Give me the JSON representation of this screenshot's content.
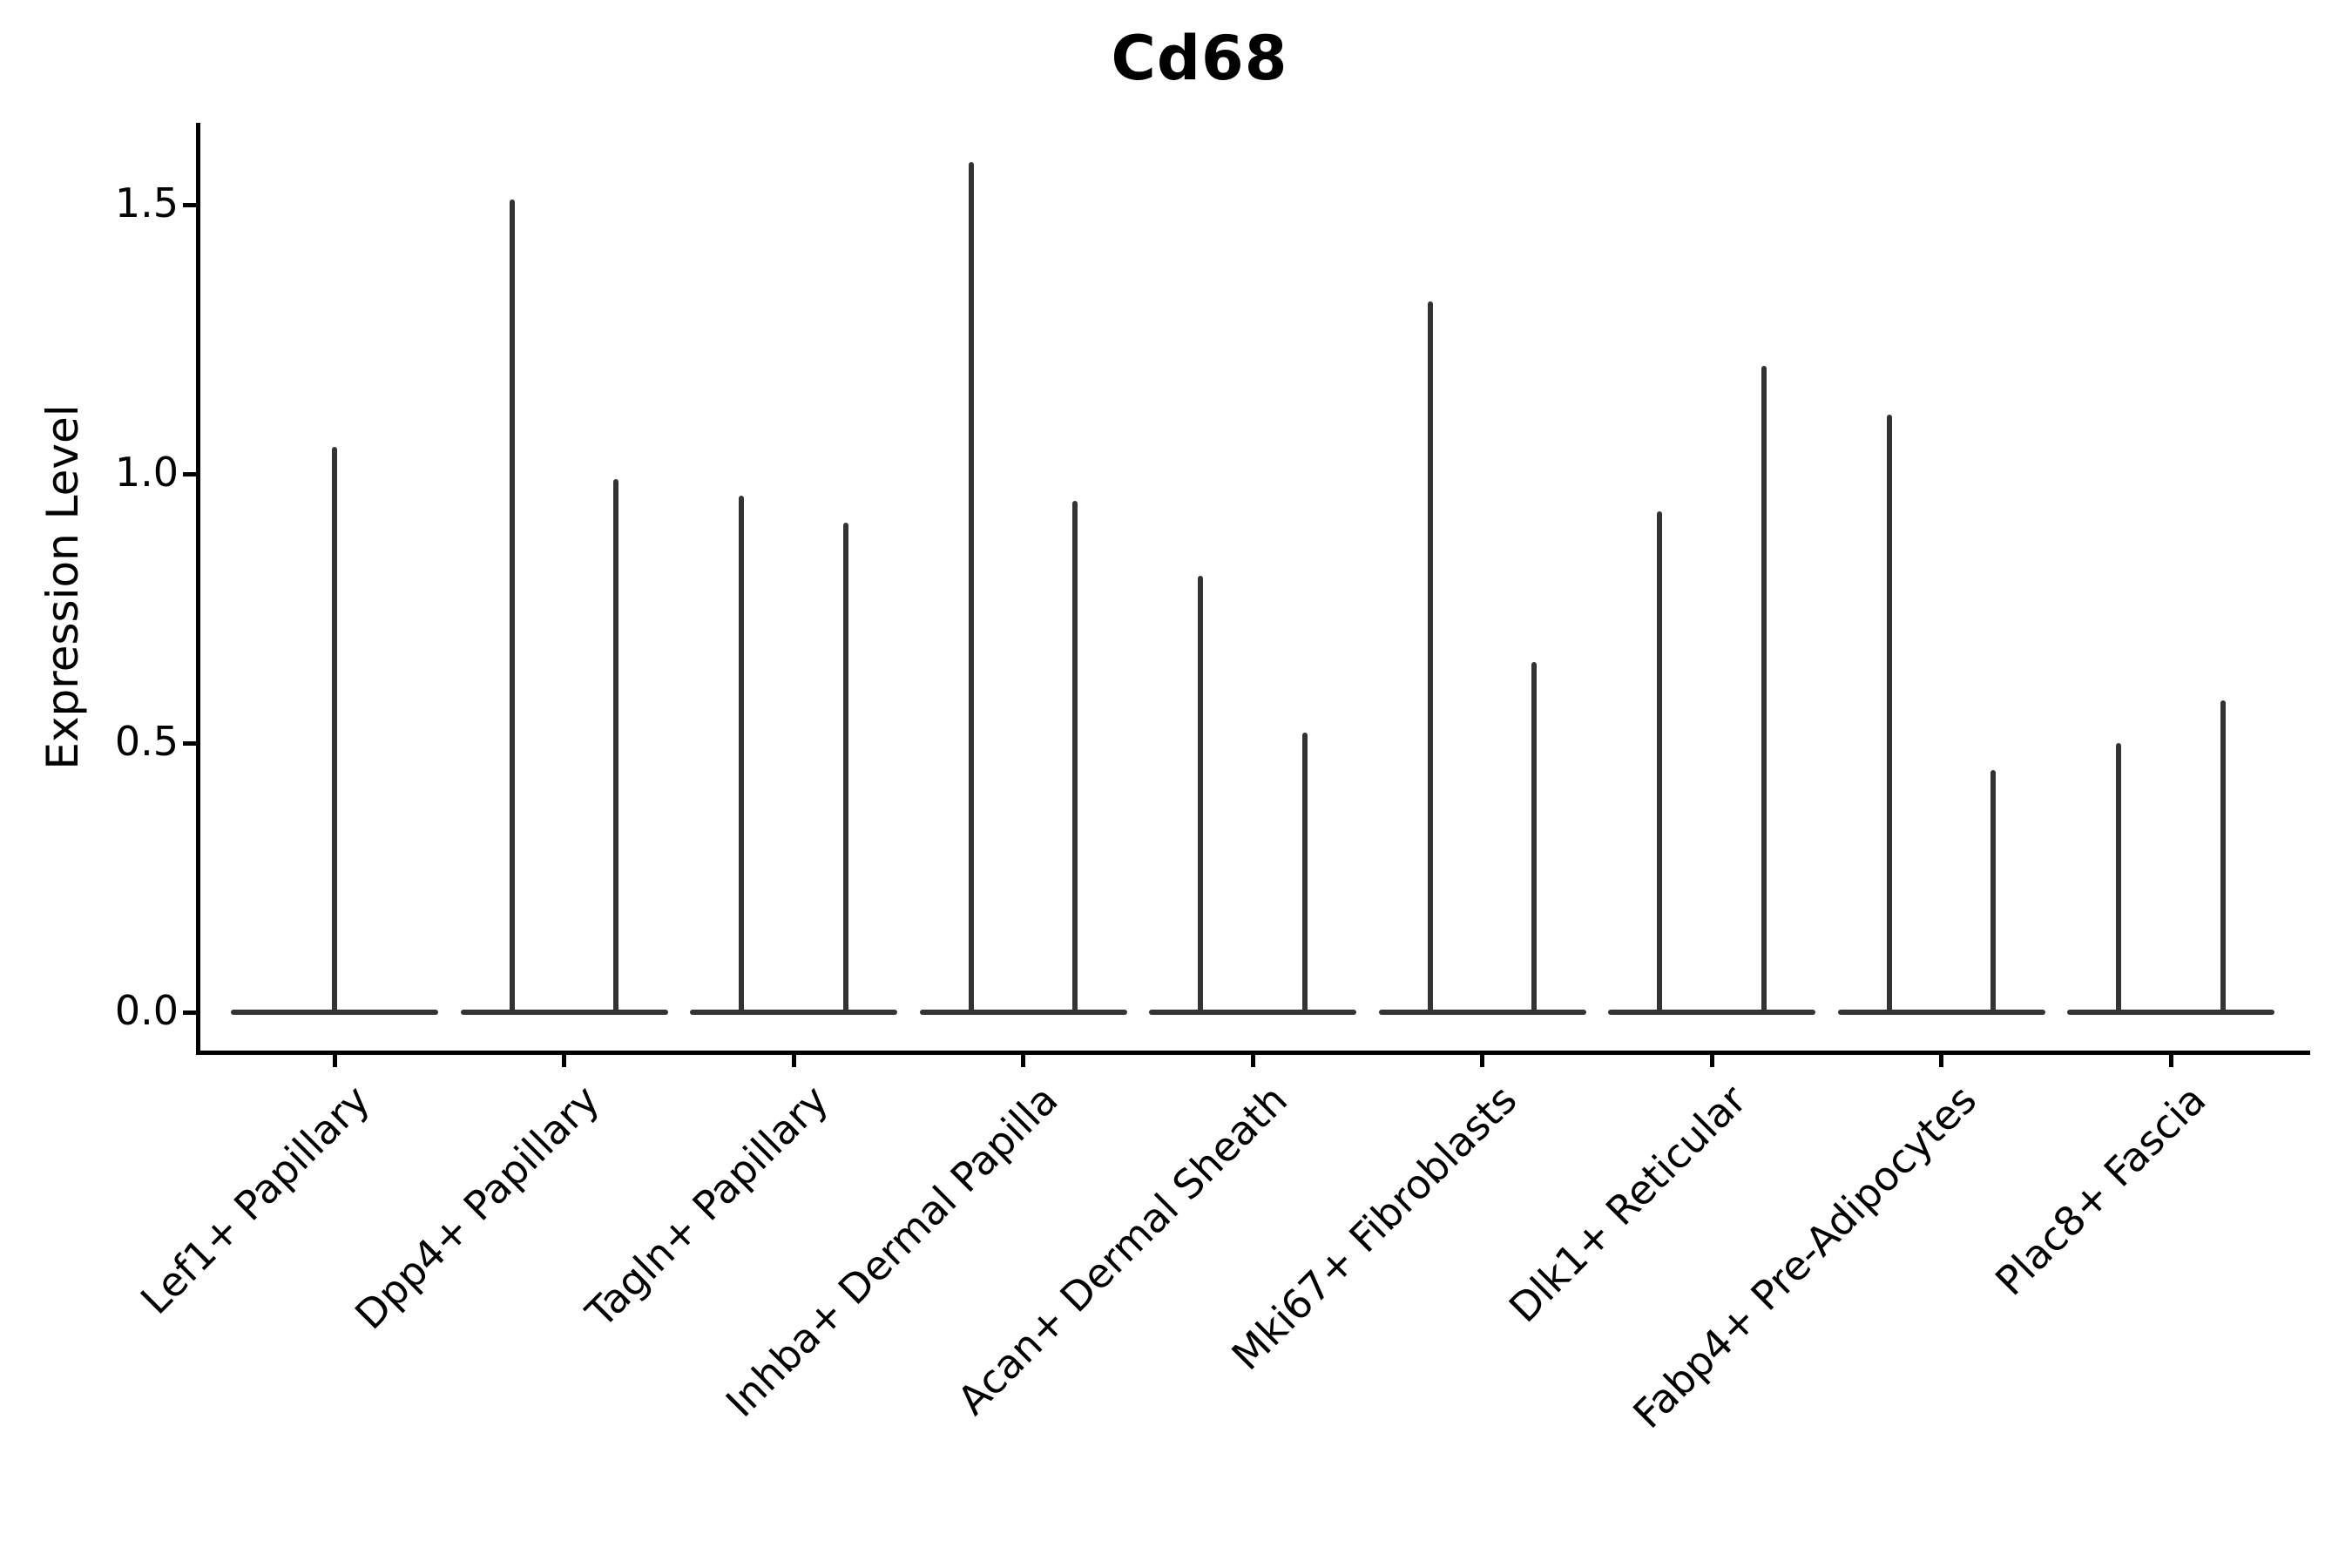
{
  "figure": {
    "title": "Cd68",
    "background": "#ffffff"
  },
  "colors": {
    "violin": "#333333",
    "axis": "#000000",
    "text": "#000000"
  },
  "chart_data": {
    "type": "violin",
    "title": "Cd68",
    "xlabel": "",
    "ylabel": "Expression Level",
    "ylim": [
      0,
      1.65
    ],
    "grid": false,
    "legend": false,
    "yticks": [
      {
        "label": "0.0",
        "value": 0.0
      },
      {
        "label": "0.5",
        "value": 0.5
      },
      {
        "label": "1.0",
        "value": 1.0
      },
      {
        "label": "1.5",
        "value": 1.5
      }
    ],
    "categories": [
      "Lef1+ Papillary",
      "Dpp4+ Papillary",
      "Tagln+ Papillary",
      "Inhba+ Dermal Papilla",
      "Acan+ Dermal Sheath",
      "Mki67+ Fibroblasts",
      "Dlk1+ Reticular",
      "Fabp4+ Pre-Adipocytes",
      "Plac8+ Fascia"
    ],
    "violins": [
      {
        "category": "Lef1+ Papillary",
        "spikes": [
          {
            "x_offset": 0.0,
            "peak": 1.05
          }
        ]
      },
      {
        "category": "Dpp4+ Papillary",
        "spikes": [
          {
            "x_offset": -0.226,
            "peak": 1.51
          },
          {
            "x_offset": 0.226,
            "peak": 0.99
          }
        ]
      },
      {
        "category": "Tagln+ Papillary",
        "spikes": [
          {
            "x_offset": -0.226,
            "peak": 0.96
          },
          {
            "x_offset": 0.226,
            "peak": 0.91
          }
        ]
      },
      {
        "category": "Inhba+ Dermal Papilla",
        "spikes": [
          {
            "x_offset": -0.226,
            "peak": 1.58
          },
          {
            "x_offset": 0.226,
            "peak": 0.95
          }
        ]
      },
      {
        "category": "Acan+ Dermal Sheath",
        "spikes": [
          {
            "x_offset": -0.226,
            "peak": 0.81
          },
          {
            "x_offset": 0.226,
            "peak": 0.52
          }
        ]
      },
      {
        "category": "Mki67+ Fibroblasts",
        "spikes": [
          {
            "x_offset": -0.226,
            "peak": 1.32
          },
          {
            "x_offset": 0.226,
            "peak": 0.65
          }
        ]
      },
      {
        "category": "Dlk1+ Reticular",
        "spikes": [
          {
            "x_offset": -0.226,
            "peak": 0.93
          },
          {
            "x_offset": 0.226,
            "peak": 1.2
          }
        ]
      },
      {
        "category": "Fabp4+ Pre-Adipocytes",
        "spikes": [
          {
            "x_offset": -0.226,
            "peak": 1.11
          },
          {
            "x_offset": 0.226,
            "peak": 0.45
          }
        ]
      },
      {
        "category": "Plac8+ Fascia",
        "spikes": [
          {
            "x_offset": -0.226,
            "peak": 0.5
          },
          {
            "x_offset": 0.226,
            "peak": 0.58
          }
        ]
      }
    ]
  }
}
